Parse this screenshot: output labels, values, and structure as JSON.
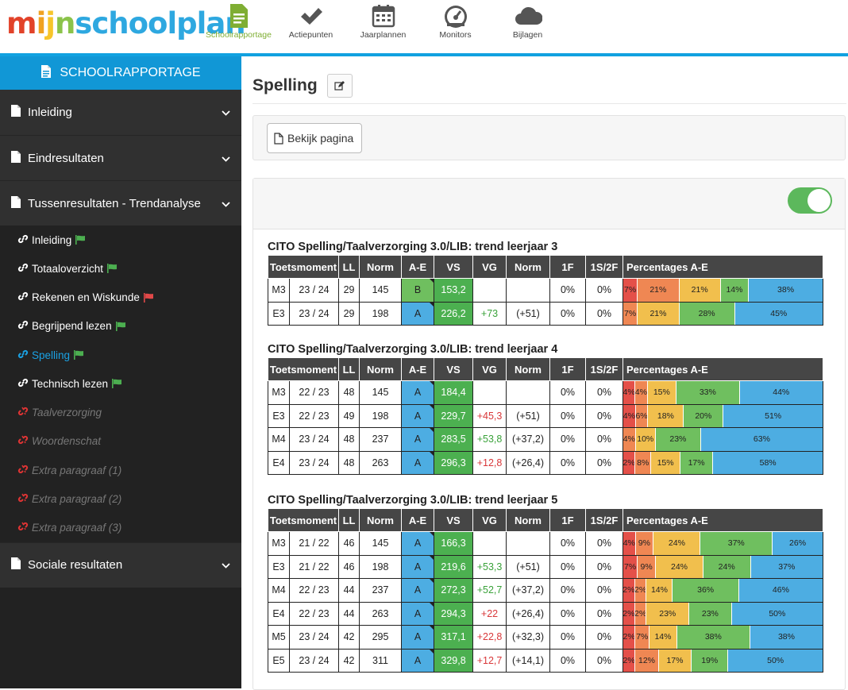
{
  "app": {
    "logo": [
      {
        "t": "m",
        "c": "#e2432a"
      },
      {
        "t": "i",
        "c": "#f0a221"
      },
      {
        "t": "j",
        "c": "#f7c52a"
      },
      {
        "t": "n",
        "c": "#8bc34a"
      },
      {
        "t": "s",
        "c": "#2ea8e0"
      },
      {
        "t": "c",
        "c": "#2ea8e0"
      },
      {
        "t": "h",
        "c": "#2ea8e0"
      },
      {
        "t": "o",
        "c": "#2ea8e0"
      },
      {
        "t": "o",
        "c": "#2ea8e0"
      },
      {
        "t": "l",
        "c": "#2ea8e0"
      },
      {
        "t": "p",
        "c": "#2ea8e0"
      },
      {
        "t": "l",
        "c": "#2ea8e0"
      },
      {
        "t": "a",
        "c": "#2ea8e0"
      },
      {
        "t": "n",
        "c": "#2ea8e0"
      }
    ],
    "nav": [
      {
        "label": "Schoolrapportage",
        "icon": "document-icon",
        "active": true
      },
      {
        "label": "Actiepunten",
        "icon": "check-icon",
        "active": false
      },
      {
        "label": "Jaarplannen",
        "icon": "calendar-icon",
        "active": false
      },
      {
        "label": "Monitors",
        "icon": "gauge-icon",
        "active": false
      },
      {
        "label": "Bijlagen",
        "icon": "cloud-icon",
        "active": false
      }
    ]
  },
  "sidebar": {
    "header": "SCHOOLRAPPORTAGE",
    "sections": [
      {
        "label": "Inleiding"
      },
      {
        "label": "Eindresultaten"
      },
      {
        "label": "Tussenresultaten - Trendanalyse"
      },
      {
        "label": "Sociale resultaten"
      }
    ],
    "subitems": [
      {
        "label": "Inleiding",
        "flag": "green",
        "state": "normal"
      },
      {
        "label": "Totaaloverzicht",
        "flag": "green",
        "state": "normal"
      },
      {
        "label": "Rekenen en Wiskunde",
        "flag": "red",
        "state": "normal"
      },
      {
        "label": "Begrijpend lezen",
        "flag": "green",
        "state": "normal"
      },
      {
        "label": "Spelling",
        "flag": "green",
        "state": "current"
      },
      {
        "label": "Technisch lezen",
        "flag": "green",
        "state": "normal"
      },
      {
        "label": "Taalverzorging",
        "flag": "",
        "state": "disabled"
      },
      {
        "label": "Woordenschat",
        "flag": "",
        "state": "disabled"
      },
      {
        "label": "Extra paragraaf (1)",
        "flag": "",
        "state": "disabled"
      },
      {
        "label": "Extra paragraaf (2)",
        "flag": "",
        "state": "disabled"
      },
      {
        "label": "Extra paragraaf (3)",
        "flag": "",
        "state": "disabled"
      }
    ]
  },
  "main": {
    "title": "Spelling",
    "view_button": "Bekijk pagina",
    "toggle_on": true
  },
  "table_headers": [
    "Toetsmoment",
    "LL",
    "Norm",
    "A-E",
    "VS",
    "VG",
    "Norm",
    "1F",
    "1S/2F",
    "Percentages A-E"
  ],
  "colors": {
    "A": "#4dade2",
    "B": "#6fbf5f",
    "VS": "#4cb050",
    "pct": [
      "#e45049",
      "#ef8753",
      "#f1bf4d",
      "#6fbf5f",
      "#4dade2"
    ],
    "vg_pos": "#3aa23a",
    "vg_neg": "#d9383a"
  },
  "tables": [
    {
      "title": "CITO Spelling/Taalverzorging 3.0/LIB: trend leerjaar 3",
      "rows": [
        {
          "moment": "M3",
          "year": "23 / 24",
          "ll": "29",
          "norm": "145",
          "ae": "B",
          "vs": "153,2",
          "vg": "",
          "vg_sign": "",
          "norm2": "",
          "f1": "0%",
          "s2": "0%",
          "pct": [
            "7%",
            "21%",
            "21%",
            "14%",
            "38%"
          ]
        },
        {
          "moment": "E3",
          "year": "23 / 24",
          "ll": "29",
          "norm": "198",
          "ae": "A",
          "vs": "226,2",
          "vg": "+73",
          "vg_sign": "pos",
          "norm2": "(+51)",
          "f1": "0%",
          "s2": "0%",
          "pct": [
            "",
            "7%",
            "21%",
            "28%",
            "45%"
          ]
        }
      ]
    },
    {
      "title": "CITO Spelling/Taalverzorging 3.0/LIB: trend leerjaar 4",
      "rows": [
        {
          "moment": "M3",
          "year": "22 / 23",
          "ll": "48",
          "norm": "145",
          "ae": "A",
          "vs": "184,4",
          "vg": "",
          "vg_sign": "",
          "norm2": "",
          "f1": "0%",
          "s2": "0%",
          "pct": [
            "4%",
            "4%",
            "15%",
            "33%",
            "44%"
          ]
        },
        {
          "moment": "E3",
          "year": "22 / 23",
          "ll": "49",
          "norm": "198",
          "ae": "A",
          "vs": "229,7",
          "vg": "+45,3",
          "vg_sign": "neg",
          "norm2": "(+51)",
          "f1": "0%",
          "s2": "0%",
          "pct": [
            "4%",
            "6%",
            "18%",
            "20%",
            "51%"
          ]
        },
        {
          "moment": "M4",
          "year": "23 / 24",
          "ll": "48",
          "norm": "237",
          "ae": "A",
          "vs": "283,5",
          "vg": "+53,8",
          "vg_sign": "pos",
          "norm2": "(+37,2)",
          "f1": "0%",
          "s2": "0%",
          "pct": [
            "",
            "4%",
            "10%",
            "23%",
            "63%"
          ]
        },
        {
          "moment": "E4",
          "year": "23 / 24",
          "ll": "48",
          "norm": "263",
          "ae": "A",
          "vs": "296,3",
          "vg": "+12,8",
          "vg_sign": "neg",
          "norm2": "(+26,4)",
          "f1": "0%",
          "s2": "0%",
          "pct": [
            "2%",
            "8%",
            "15%",
            "17%",
            "58%"
          ]
        }
      ]
    },
    {
      "title": "CITO Spelling/Taalverzorging 3.0/LIB: trend leerjaar 5",
      "rows": [
        {
          "moment": "M3",
          "year": "21 / 22",
          "ll": "46",
          "norm": "145",
          "ae": "A",
          "vs": "166,3",
          "vg": "",
          "vg_sign": "",
          "norm2": "",
          "f1": "0%",
          "s2": "0%",
          "pct": [
            "4%",
            "9%",
            "24%",
            "37%",
            "26%"
          ]
        },
        {
          "moment": "E3",
          "year": "21 / 22",
          "ll": "46",
          "norm": "198",
          "ae": "A",
          "vs": "219,6",
          "vg": "+53,3",
          "vg_sign": "pos",
          "norm2": "(+51)",
          "f1": "0%",
          "s2": "0%",
          "pct": [
            "7%",
            "9%",
            "24%",
            "24%",
            "37%"
          ]
        },
        {
          "moment": "M4",
          "year": "22 / 23",
          "ll": "44",
          "norm": "237",
          "ae": "A",
          "vs": "272,3",
          "vg": "+52,7",
          "vg_sign": "pos",
          "norm2": "(+37,2)",
          "f1": "0%",
          "s2": "0%",
          "pct": [
            "2%",
            "2%",
            "14%",
            "36%",
            "46%"
          ]
        },
        {
          "moment": "E4",
          "year": "22 / 23",
          "ll": "44",
          "norm": "263",
          "ae": "A",
          "vs": "294,3",
          "vg": "+22",
          "vg_sign": "neg",
          "norm2": "(+26,4)",
          "f1": "0%",
          "s2": "0%",
          "pct": [
            "2%",
            "2%",
            "23%",
            "23%",
            "50%"
          ]
        },
        {
          "moment": "M5",
          "year": "23 / 24",
          "ll": "42",
          "norm": "295",
          "ae": "A",
          "vs": "317,1",
          "vg": "+22,8",
          "vg_sign": "neg",
          "norm2": "(+32,3)",
          "f1": "0%",
          "s2": "0%",
          "pct": [
            "2%",
            "7%",
            "14%",
            "38%",
            "38%"
          ]
        },
        {
          "moment": "E5",
          "year": "23 / 24",
          "ll": "42",
          "norm": "311",
          "ae": "A",
          "vs": "329,8",
          "vg": "+12,7",
          "vg_sign": "neg",
          "norm2": "(+14,1)",
          "f1": "0%",
          "s2": "0%",
          "pct": [
            "2%",
            "12%",
            "17%",
            "19%",
            "50%"
          ]
        }
      ]
    }
  ]
}
